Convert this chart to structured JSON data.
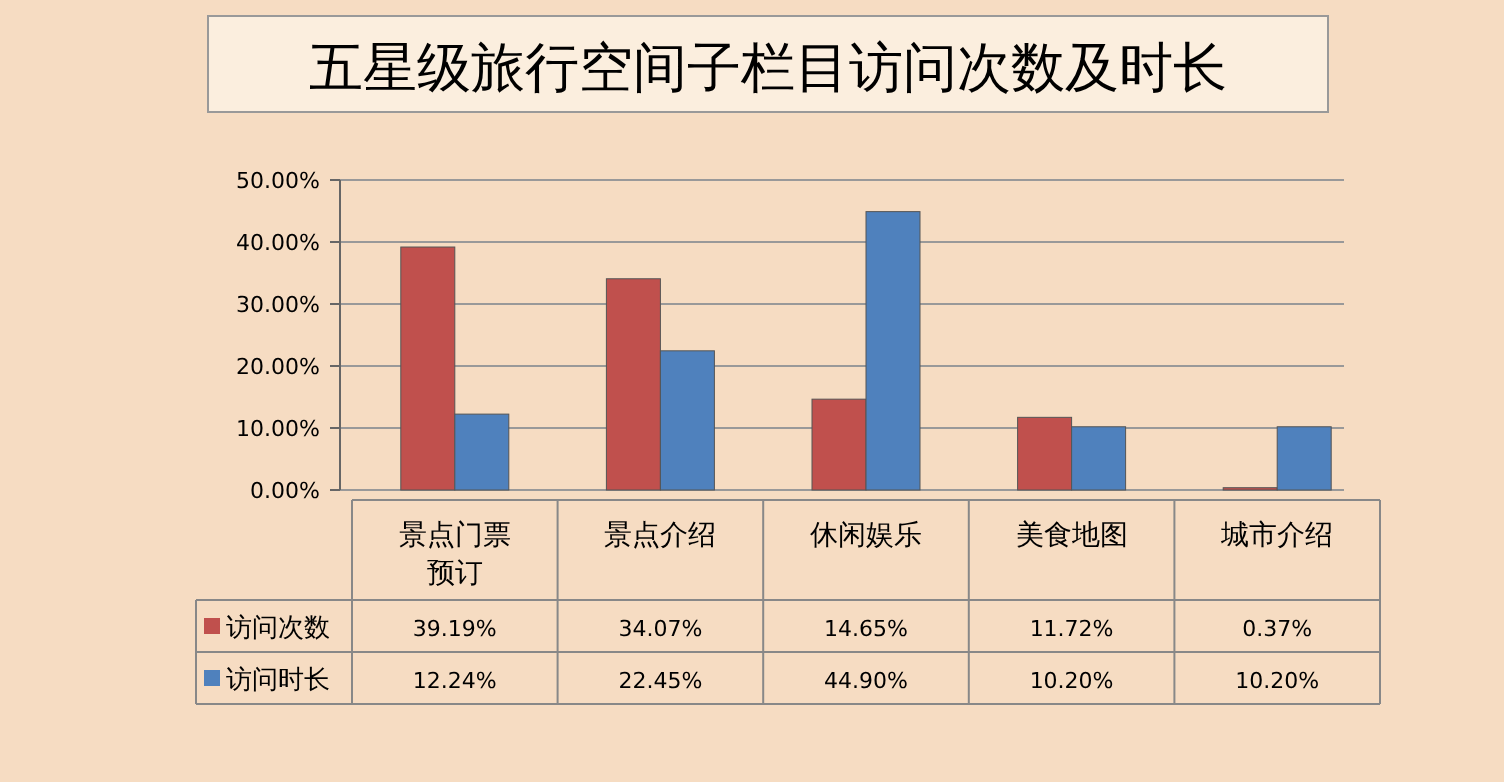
{
  "chart_data": {
    "type": "bar",
    "title": "五星级旅行空间子栏目访问次数及时长",
    "categories": [
      "景点门票预订",
      "景点介绍",
      "休闲娱乐",
      "美食地图",
      "城市介绍"
    ],
    "series": [
      {
        "name": "访问次数",
        "color": "#c0504d",
        "values": [
          39.19,
          34.07,
          14.65,
          11.72,
          0.37
        ],
        "value_labels": [
          "39.19%",
          "34.07%",
          "14.65%",
          "11.72%",
          "0.37%"
        ]
      },
      {
        "name": "访问时长",
        "color": "#4f81bd",
        "values": [
          12.24,
          22.45,
          44.9,
          10.2,
          10.2
        ],
        "value_labels": [
          "12.24%",
          "22.45%",
          "44.90%",
          "10.20%",
          "10.20%"
        ]
      }
    ],
    "ylim": [
      0,
      50
    ],
    "yticks": [
      {
        "value": 0,
        "label": "0.00%"
      },
      {
        "value": 10,
        "label": "10.00%"
      },
      {
        "value": 20,
        "label": "20.00%"
      },
      {
        "value": 30,
        "label": "30.00%"
      },
      {
        "value": 40,
        "label": "40.00%"
      },
      {
        "value": 50,
        "label": "50.00%"
      }
    ],
    "grid": "y",
    "legend": "bottom"
  }
}
